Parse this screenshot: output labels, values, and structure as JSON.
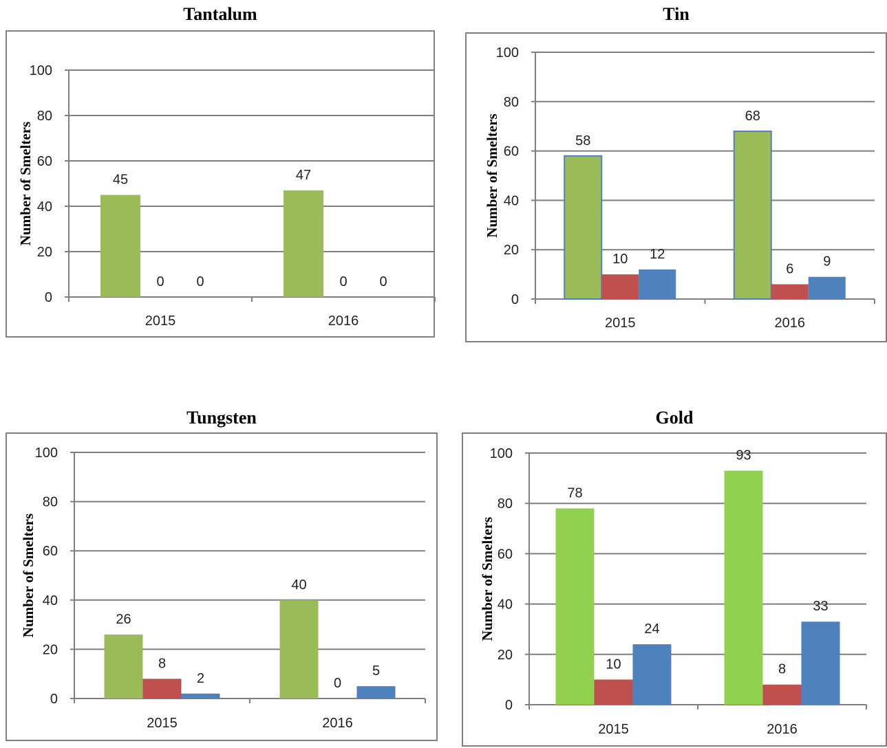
{
  "colors": {
    "green": "#9bbb59",
    "gold_green": "#92d050",
    "red": "#c0504d",
    "blue": "#4f81bd",
    "grid": "#7f7f7f",
    "border": "#7f7f7f"
  },
  "chart_data": [
    {
      "type": "bar",
      "title": "Tantalum",
      "ylabel": "Number of Smelters",
      "xlabel": "",
      "categories": [
        "2015",
        "2016"
      ],
      "ylim": [
        0,
        100
      ],
      "yticks": [
        0,
        20,
        40,
        60,
        80,
        100
      ],
      "grid": true,
      "legend": "none",
      "series": [
        {
          "values": [
            45,
            47
          ],
          "color": "#9bbb59"
        },
        {
          "values": [
            0,
            0
          ],
          "color": "#c0504d"
        },
        {
          "values": [
            0,
            0
          ],
          "color": "#4f81bd"
        }
      ]
    },
    {
      "type": "bar",
      "title": "Tin",
      "ylabel": "Number of Smelters",
      "xlabel": "",
      "categories": [
        "2015",
        "2016"
      ],
      "ylim": [
        0,
        100
      ],
      "yticks": [
        0,
        20,
        40,
        60,
        80,
        100
      ],
      "grid": true,
      "legend": "none",
      "series": [
        {
          "values": [
            58,
            68
          ],
          "color": "#9bbb59"
        },
        {
          "values": [
            10,
            6
          ],
          "color": "#c0504d"
        },
        {
          "values": [
            12,
            9
          ],
          "color": "#4f81bd"
        }
      ]
    },
    {
      "type": "bar",
      "title": "Tungsten",
      "ylabel": "Number of Smelters",
      "xlabel": "",
      "categories": [
        "2015",
        "2016"
      ],
      "ylim": [
        0,
        100
      ],
      "yticks": [
        0,
        20,
        40,
        60,
        80,
        100
      ],
      "grid": true,
      "legend": "none",
      "series": [
        {
          "values": [
            26,
            40
          ],
          "color": "#9bbb59"
        },
        {
          "values": [
            8,
            0
          ],
          "color": "#c0504d"
        },
        {
          "values": [
            2,
            5
          ],
          "color": "#4f81bd"
        }
      ]
    },
    {
      "type": "bar",
      "title": "Gold",
      "ylabel": "Number of Smelters",
      "xlabel": "",
      "categories": [
        "2015",
        "2016"
      ],
      "ylim": [
        0,
        100
      ],
      "yticks": [
        0,
        20,
        40,
        60,
        80,
        100
      ],
      "grid": true,
      "legend": "none",
      "series": [
        {
          "values": [
            78,
            93
          ],
          "color": "#92d050"
        },
        {
          "values": [
            10,
            8
          ],
          "color": "#c0504d"
        },
        {
          "values": [
            24,
            33
          ],
          "color": "#4f81bd"
        }
      ]
    }
  ]
}
